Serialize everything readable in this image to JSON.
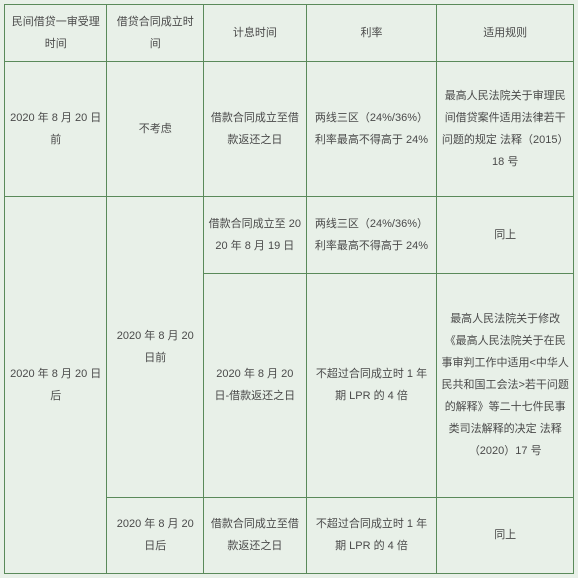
{
  "table": {
    "headers": {
      "h1": "民间借贷一审受理时间",
      "h2": "借贷合同成立时间",
      "h3": "计息时间",
      "h4": "利率",
      "h5": "适用规则"
    },
    "rows": {
      "r1": {
        "c1": "2020 年 8 月 20 日前",
        "c2": "不考虑",
        "c3": "借款合同成立至借款返还之日",
        "c4": "两线三区（24%/36%）利率最高不得高于 24%",
        "c5": "最高人民法院关于审理民间借贷案件适用法律若干问题的规定 法释（2015）18 号"
      },
      "r2": {
        "c1": "2020 年 8 月 20 日后",
        "c2": "2020 年 8 月 20 日前",
        "c3": "借款合同成立至 2020 年 8 月 19 日",
        "c4": "两线三区（24%/36%）利率最高不得高于 24%",
        "c5": "同上"
      },
      "r3": {
        "c3": "2020 年 8 月 20 日-借款返还之日",
        "c4": "不超过合同成立时 1 年期 LPR 的 4 倍",
        "c5": "最高人民法院关于修改《最高人民法院关于在民事审判工作中适用<中华人民共和国工会法>若干问题的解释》等二十七件民事类司法解释的决定 法释（2020）17 号"
      },
      "r4": {
        "c2": "2020 年 8 月 20 日后",
        "c3": "借款合同成立至借款返还之日",
        "c4": "不超过合同成立时 1 年期 LPR 的 4 倍",
        "c5": "同上"
      }
    },
    "colors": {
      "background": "#e8f0e8",
      "border": "#5a8a5a",
      "text": "#4a4a4a"
    },
    "font_size": 11
  }
}
